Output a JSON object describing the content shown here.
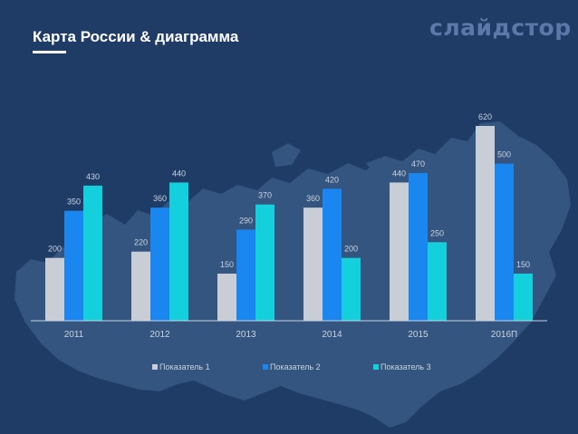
{
  "slide": {
    "title": "Карта России & диаграмма",
    "logo": "слайдстор"
  },
  "colors": {
    "background": "#1f3c66",
    "map": "#34557f",
    "axis": "#c9d3e0",
    "text": "#c9d3e0"
  },
  "chart_data": {
    "type": "bar",
    "categories": [
      "2011",
      "2012",
      "2013",
      "2014",
      "2015",
      "2016П"
    ],
    "series": [
      {
        "name": "Показатель 1",
        "color": "#c9ced6",
        "values": [
          200,
          220,
          150,
          360,
          440,
          620
        ]
      },
      {
        "name": "Показатель 2",
        "color": "#1a87f0",
        "values": [
          350,
          360,
          290,
          420,
          470,
          500
        ]
      },
      {
        "name": "Показатель 3",
        "color": "#14d0dc",
        "values": [
          430,
          440,
          370,
          200,
          250,
          150
        ]
      }
    ],
    "ylim": [
      0,
      620
    ],
    "grid": false,
    "data_labels": true,
    "legend_position": "bottom"
  }
}
